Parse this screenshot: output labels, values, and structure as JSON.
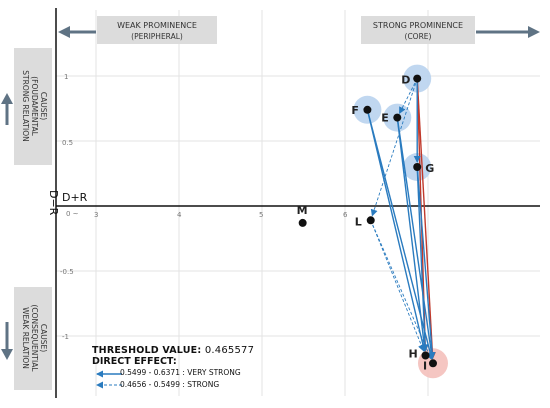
{
  "axes": {
    "horizontal_label": "D+R",
    "vertical_label": "D−R",
    "x_ticks": [
      "0",
      "3",
      "4",
      "5",
      "6"
    ],
    "y_ticks": [
      "1",
      "0.5",
      "-0.5",
      "-1"
    ],
    "origin_mark": "0 ~"
  },
  "boxes": {
    "weak_prominence": [
      "WEAK PROMINENCE",
      "(PERIPHERAL)"
    ],
    "strong_prominence": [
      "STRONG PROMINENCE",
      "(CORE)"
    ],
    "strong_relation": [
      "STRONG RELATION",
      "(FOUDAMENTAL",
      "CAUSE)"
    ],
    "weak_relation": [
      "WEAK RELATION",
      "(CONSEQUENTIAL",
      "CAUSE)"
    ]
  },
  "nodes": [
    {
      "id": "D",
      "label": "D",
      "x": 6.87,
      "y": 0.98,
      "halo": "blue"
    },
    {
      "id": "F",
      "label": "F",
      "x": 6.27,
      "y": 0.74,
      "halo": "blue"
    },
    {
      "id": "E",
      "label": "E",
      "x": 6.63,
      "y": 0.68,
      "halo": "blue"
    },
    {
      "id": "G",
      "label": "G",
      "x": 6.87,
      "y": 0.3,
      "halo": "blue"
    },
    {
      "id": "L",
      "label": "L",
      "x": 6.31,
      "y": -0.11,
      "halo": "none"
    },
    {
      "id": "M",
      "label": "M",
      "x": 5.49,
      "y": -0.13,
      "halo": "none"
    },
    {
      "id": "H",
      "label": "H",
      "x": 6.97,
      "y": -1.15,
      "halo": "none"
    },
    {
      "id": "I",
      "label": "I",
      "x": 7.06,
      "y": -1.21,
      "halo": "red"
    }
  ],
  "arrows": [
    {
      "from": "D",
      "to": "H",
      "style": "solid",
      "color": "#c0392b"
    },
    {
      "from": "D",
      "to": "I",
      "style": "solid",
      "color": "#c0392b"
    },
    {
      "from": "F",
      "to": "H",
      "style": "solid",
      "color": "#2a7bbf"
    },
    {
      "from": "F",
      "to": "I",
      "style": "solid",
      "color": "#2a7bbf"
    },
    {
      "from": "E",
      "to": "H",
      "style": "solid",
      "color": "#2a7bbf"
    },
    {
      "from": "E",
      "to": "I",
      "style": "solid",
      "color": "#2a7bbf"
    },
    {
      "from": "G",
      "to": "H",
      "style": "solid",
      "color": "#2a7bbf"
    },
    {
      "from": "G",
      "to": "I",
      "style": "solid",
      "color": "#2a7bbf"
    },
    {
      "from": "D",
      "to": "G",
      "style": "solid",
      "color": "#2a7bbf"
    },
    {
      "from": "D",
      "to": "L",
      "style": "dashed",
      "color": "#2a7bbf"
    },
    {
      "from": "D",
      "to": "E",
      "style": "dashed",
      "color": "#2a7bbf"
    },
    {
      "from": "L",
      "to": "H",
      "style": "dashed",
      "color": "#2a7bbf"
    },
    {
      "from": "L",
      "to": "I",
      "style": "dashed",
      "color": "#2a7bbf"
    }
  ],
  "legend": {
    "threshold_label": "THRESHOLD VALUE:",
    "threshold_value": "0.465577",
    "direct_effect_label": "DIRECT EFFECT:",
    "very_strong": "0.5499 - 0.6371 : VERY STRONG",
    "strong": "0.4656 - 0.5499 : STRONG"
  },
  "colors": {
    "box_fill": "#dcdcdc",
    "arrow_gray": "#5f7384",
    "blue_line": "#2a7bbf",
    "red_line": "#c0392b",
    "blue_halo": "#b9d3ee",
    "red_halo": "#f4c0bb"
  }
}
